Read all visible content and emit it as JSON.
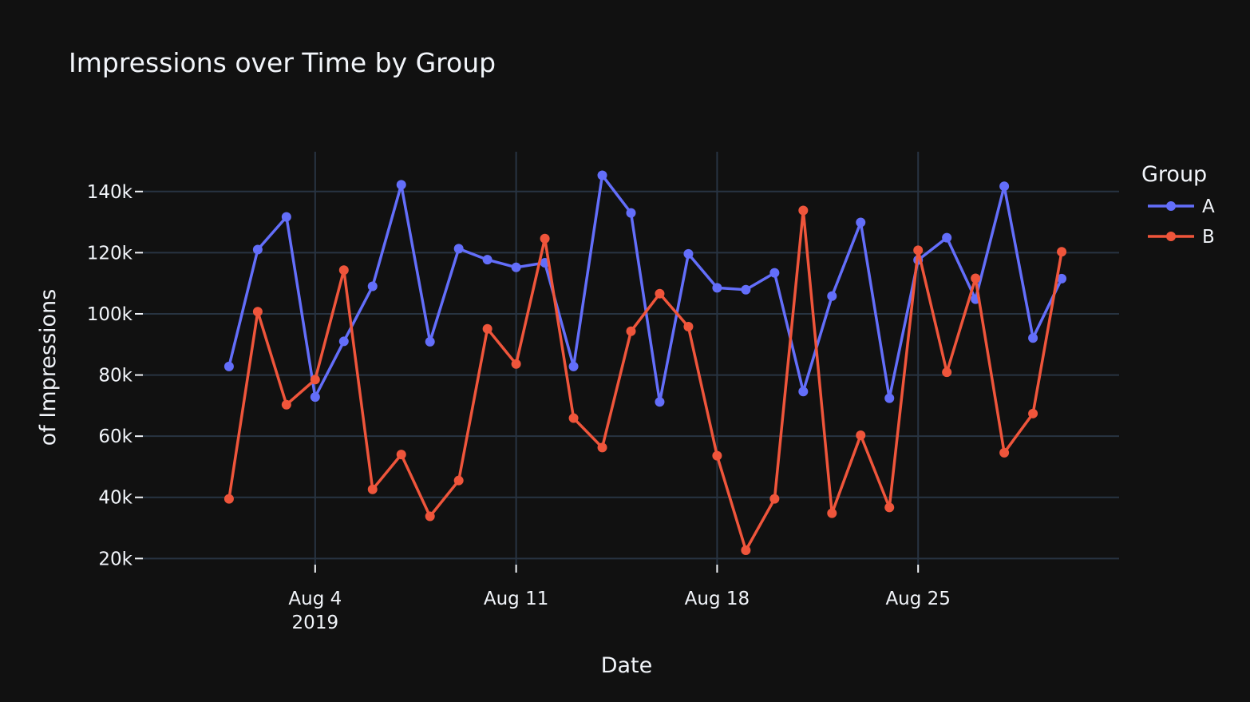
{
  "chart_data": {
    "type": "line",
    "title": "Impressions over Time by Group",
    "xlabel": "Date",
    "ylabel": "of Impressions",
    "x_ticks": [
      {
        "date": "2019-08-04",
        "label": "Aug 4",
        "sublabel": "2019"
      },
      {
        "date": "2019-08-11",
        "label": "Aug 11",
        "sublabel": ""
      },
      {
        "date": "2019-08-18",
        "label": "Aug 18",
        "sublabel": ""
      },
      {
        "date": "2019-08-25",
        "label": "Aug 25",
        "sublabel": ""
      }
    ],
    "y_ticks": [
      {
        "value": 20000,
        "label": "20k"
      },
      {
        "value": 40000,
        "label": "40k"
      },
      {
        "value": 60000,
        "label": "60k"
      },
      {
        "value": 80000,
        "label": "80k"
      },
      {
        "value": 100000,
        "label": "100k"
      },
      {
        "value": 120000,
        "label": "120k"
      },
      {
        "value": 140000,
        "label": "140k"
      }
    ],
    "xlim": [
      "2019-07-29",
      "2019-09-01"
    ],
    "ylim": [
      18000,
      153000
    ],
    "grid": true,
    "legend_title": "Group",
    "legend_placement": "top-right",
    "x": [
      "2019-08-01",
      "2019-08-02",
      "2019-08-03",
      "2019-08-04",
      "2019-08-05",
      "2019-08-06",
      "2019-08-07",
      "2019-08-08",
      "2019-08-09",
      "2019-08-10",
      "2019-08-11",
      "2019-08-12",
      "2019-08-13",
      "2019-08-14",
      "2019-08-15",
      "2019-08-16",
      "2019-08-17",
      "2019-08-18",
      "2019-08-19",
      "2019-08-20",
      "2019-08-21",
      "2019-08-22",
      "2019-08-23",
      "2019-08-24",
      "2019-08-25",
      "2019-08-26",
      "2019-08-27",
      "2019-08-28",
      "2019-08-29",
      "2019-08-30"
    ],
    "series": [
      {
        "name": "A",
        "color": "#636efa",
        "values": [
          82800,
          121000,
          131700,
          72800,
          91000,
          109000,
          142200,
          90900,
          121300,
          117700,
          115200,
          116700,
          82800,
          145300,
          133000,
          71200,
          119600,
          108500,
          107900,
          113400,
          74600,
          105800,
          129900,
          72400,
          117600,
          124900,
          104800,
          141700,
          92100,
          111500
        ]
      },
      {
        "name": "B",
        "color": "#ef553b",
        "values": [
          39500,
          100700,
          70300,
          78500,
          114300,
          42600,
          54000,
          33800,
          45500,
          95100,
          83600,
          124600,
          65900,
          56300,
          94300,
          106600,
          95800,
          53600,
          22700,
          39500,
          133800,
          34800,
          60300,
          36700,
          120800,
          80900,
          111600,
          54600,
          67400,
          120300
        ]
      }
    ]
  }
}
